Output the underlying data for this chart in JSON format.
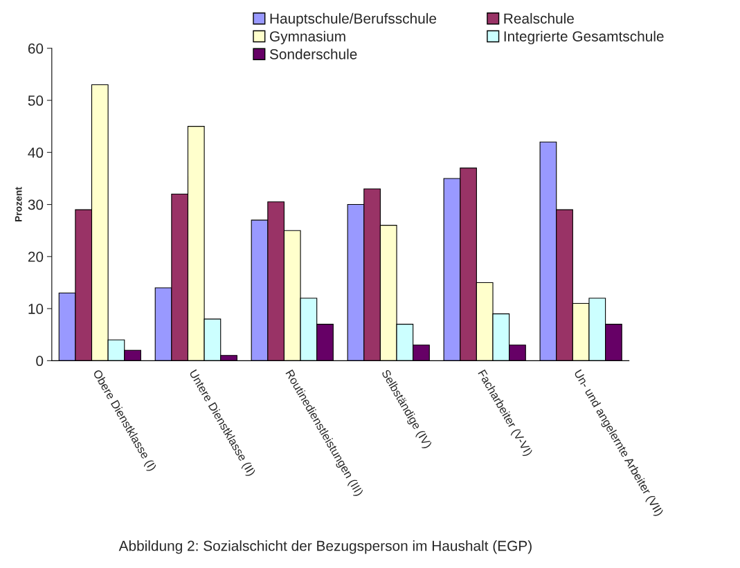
{
  "chart_data": {
    "type": "bar",
    "ylabel": "Prozent",
    "categories": [
      "Obere Dienstklasse (I)",
      "Untere Dienstklasse (II)",
      "Routinedienstleistungen (III)",
      "Selbständige (IV)",
      "Facharbeiter (V-VI)",
      "Un- und angelernte Arbeiter (VII)"
    ],
    "series": [
      {
        "name": "Hauptschule/Berufsschule",
        "color": "#9999ff",
        "values": [
          13,
          14,
          27,
          30,
          35,
          42
        ]
      },
      {
        "name": "Realschule",
        "color": "#993366",
        "values": [
          29,
          32,
          30.5,
          33,
          37,
          29
        ]
      },
      {
        "name": "Gymnasium",
        "color": "#ffffcc",
        "values": [
          53,
          45,
          25,
          26,
          15,
          11
        ]
      },
      {
        "name": "Integrierte Gesamtschule",
        "color": "#ccffff",
        "values": [
          4,
          8,
          12,
          7,
          9,
          12
        ]
      },
      {
        "name": "Sonderschule",
        "color": "#660066",
        "values": [
          2,
          1,
          7,
          3,
          3,
          7
        ]
      }
    ],
    "ylim": [
      0,
      60
    ],
    "yticks": [
      0,
      10,
      20,
      30,
      40,
      50,
      60
    ],
    "grid": false,
    "legend": "top",
    "annotations": [
      "Abbildung 2: Sozialschicht der Bezugsperson im Haushalt (EGP)"
    ]
  }
}
